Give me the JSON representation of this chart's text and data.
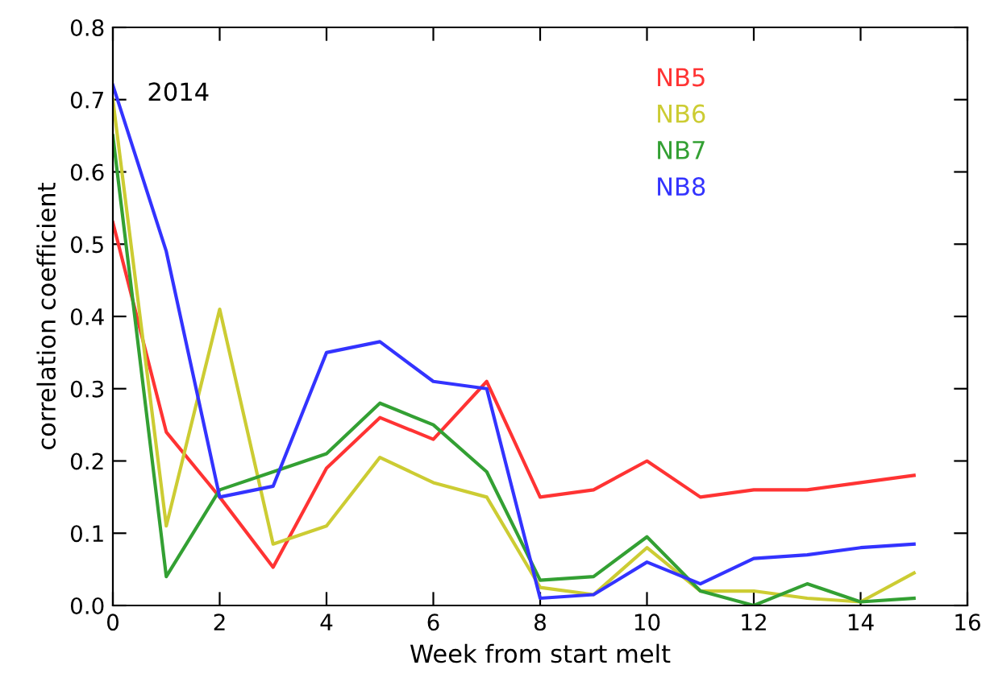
{
  "chart_data": {
    "type": "line",
    "xlabel": "Week from start melt",
    "ylabel": "correlation coefficient",
    "annotations": [
      "2014"
    ],
    "x": [
      0,
      1,
      2,
      3,
      4,
      5,
      6,
      7,
      8,
      9,
      10,
      11,
      12,
      13,
      14,
      15
    ],
    "series": [
      {
        "name": "NB5",
        "color": "#ff3333",
        "values": [
          0.53,
          0.24,
          0.15,
          0.053,
          0.19,
          0.26,
          0.23,
          0.31,
          0.15,
          0.16,
          0.2,
          0.15,
          0.16,
          0.16,
          0.17,
          0.18
        ]
      },
      {
        "name": "NB6",
        "color": "#cccc33",
        "values": [
          0.7,
          0.11,
          0.41,
          0.085,
          0.11,
          0.205,
          0.17,
          0.15,
          0.025,
          0.015,
          0.08,
          0.02,
          0.02,
          0.01,
          0.005,
          0.045
        ]
      },
      {
        "name": "NB7",
        "color": "#33a033",
        "values": [
          0.65,
          0.04,
          0.16,
          0.185,
          0.21,
          0.28,
          0.25,
          0.185,
          0.035,
          0.04,
          0.095,
          0.02,
          0.0,
          0.03,
          0.005,
          0.01
        ]
      },
      {
        "name": "NB8",
        "color": "#3333ff",
        "values": [
          0.72,
          0.49,
          0.15,
          0.165,
          0.35,
          0.365,
          0.31,
          0.3,
          0.01,
          0.015,
          0.06,
          0.03,
          0.065,
          0.07,
          0.08,
          0.085
        ]
      }
    ],
    "xlim": [
      0,
      16
    ],
    "xticks": [
      0,
      2,
      4,
      6,
      8,
      10,
      12,
      14,
      16
    ],
    "ylim": [
      0,
      0.8
    ],
    "yticks": [
      {
        "value": 0,
        "label": "0.0"
      },
      0.1,
      0.2,
      0.3,
      0.4,
      0.5,
      0.6,
      0.7,
      0.8
    ],
    "grid": false,
    "marker": "none",
    "line_style": "solid"
  }
}
